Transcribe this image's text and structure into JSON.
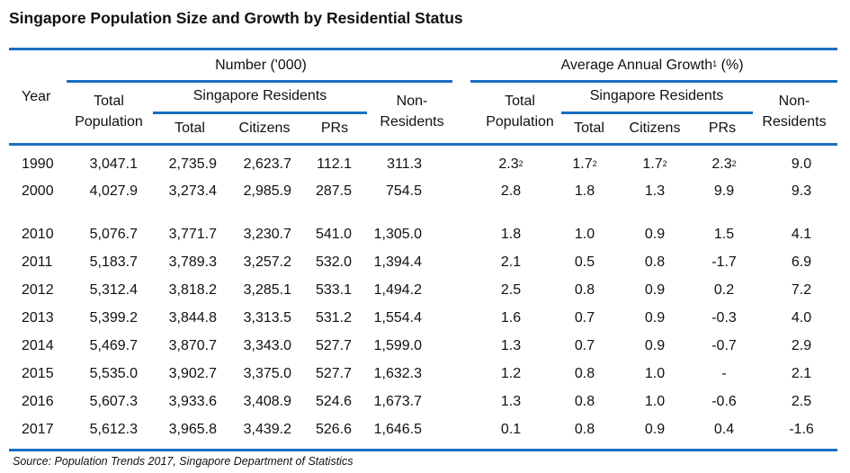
{
  "title": "Singapore Population Size and Growth by Residential Status",
  "header": {
    "year": "Year",
    "number_group": "Number ('000)",
    "growth_group": "Average Annual Growth",
    "growth_group_sup": "1",
    "growth_group_unit": " (%)",
    "total_population_1": "Total",
    "total_population_2": "Population",
    "singapore_residents": "Singapore Residents",
    "total": "Total",
    "citizens": "Citizens",
    "prs": "PRs",
    "non_residents_1": "Non-",
    "non_residents_2": "Residents",
    "accent_color": "#1a6fc0"
  },
  "rows": [
    {
      "year": "1990",
      "number": [
        "3,047.1",
        "2,735.9",
        "2,623.7",
        "112.1",
        "311.3"
      ],
      "growth": [
        [
          "2.3",
          "2"
        ],
        [
          "1.7",
          "2"
        ],
        [
          "1.7",
          "2"
        ],
        [
          "2.3",
          "2"
        ],
        [
          "9.0",
          ""
        ]
      ]
    },
    {
      "year": "2000",
      "number": [
        "4,027.9",
        "3,273.4",
        "2,985.9",
        "287.5",
        "754.5"
      ],
      "growth": [
        [
          "2.8",
          ""
        ],
        [
          "1.8",
          ""
        ],
        [
          "1.3",
          ""
        ],
        [
          "9.9",
          ""
        ],
        [
          "9.3",
          ""
        ]
      ]
    },
    {
      "year": "2010",
      "number": [
        "5,076.7",
        "3,771.7",
        "3,230.7",
        "541.0",
        "1,305.0"
      ],
      "growth": [
        [
          "1.8",
          ""
        ],
        [
          "1.0",
          ""
        ],
        [
          "0.9",
          ""
        ],
        [
          "1.5",
          ""
        ],
        [
          "4.1",
          ""
        ]
      ]
    },
    {
      "year": "2011",
      "number": [
        "5,183.7",
        "3,789.3",
        "3,257.2",
        "532.0",
        "1,394.4"
      ],
      "growth": [
        [
          "2.1",
          ""
        ],
        [
          "0.5",
          ""
        ],
        [
          "0.8",
          ""
        ],
        [
          "-1.7",
          ""
        ],
        [
          "6.9",
          ""
        ]
      ]
    },
    {
      "year": "2012",
      "number": [
        "5,312.4",
        "3,818.2",
        "3,285.1",
        "533.1",
        "1,494.2"
      ],
      "growth": [
        [
          "2.5",
          ""
        ],
        [
          "0.8",
          ""
        ],
        [
          "0.9",
          ""
        ],
        [
          "0.2",
          ""
        ],
        [
          "7.2",
          ""
        ]
      ]
    },
    {
      "year": "2013",
      "number": [
        "5,399.2",
        "3,844.8",
        "3,313.5",
        "531.2",
        "1,554.4"
      ],
      "growth": [
        [
          "1.6",
          ""
        ],
        [
          "0.7",
          ""
        ],
        [
          "0.9",
          ""
        ],
        [
          "-0.3",
          ""
        ],
        [
          "4.0",
          ""
        ]
      ]
    },
    {
      "year": "2014",
      "number": [
        "5,469.7",
        "3,870.7",
        "3,343.0",
        "527.7",
        "1,599.0"
      ],
      "growth": [
        [
          "1.3",
          ""
        ],
        [
          "0.7",
          ""
        ],
        [
          "0.9",
          ""
        ],
        [
          "-0.7",
          ""
        ],
        [
          "2.9",
          ""
        ]
      ]
    },
    {
      "year": "2015",
      "number": [
        "5,535.0",
        "3,902.7",
        "3,375.0",
        "527.7",
        "1,632.3"
      ],
      "growth": [
        [
          "1.2",
          ""
        ],
        [
          "0.8",
          ""
        ],
        [
          "1.0",
          ""
        ],
        [
          "-",
          ""
        ],
        [
          "2.1",
          ""
        ]
      ]
    },
    {
      "year": "2016",
      "number": [
        "5,607.3",
        "3,933.6",
        "3,408.9",
        "524.6",
        "1,673.7"
      ],
      "growth": [
        [
          "1.3",
          ""
        ],
        [
          "0.8",
          ""
        ],
        [
          "1.0",
          ""
        ],
        [
          "-0.6",
          ""
        ],
        [
          "2.5",
          ""
        ]
      ]
    },
    {
      "year": "2017",
      "number": [
        "5,612.3",
        "3,965.8",
        "3,439.2",
        "526.6",
        "1,646.5"
      ],
      "growth": [
        [
          "0.1",
          ""
        ],
        [
          "0.8",
          ""
        ],
        [
          "0.9",
          ""
        ],
        [
          "0.4",
          ""
        ],
        [
          "-1.6",
          ""
        ]
      ]
    }
  ],
  "source": "Source: Population Trends 2017, Singapore Department of Statistics"
}
